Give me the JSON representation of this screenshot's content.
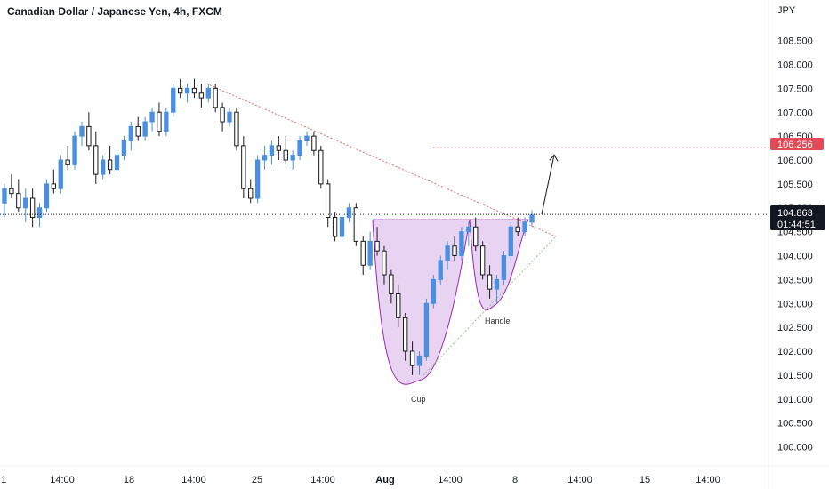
{
  "header": {
    "title": "Canadian Dollar / Japanese Yen, 4h, FXCM"
  },
  "axis": {
    "currency": "JPY",
    "y_ticks": [
      "108.500",
      "108.000",
      "107.500",
      "107.000",
      "106.500",
      "106.000",
      "105.500",
      "105.000",
      "104.500",
      "104.000",
      "103.500",
      "103.000",
      "102.500",
      "102.000",
      "101.500",
      "101.000",
      "100.500",
      "100.000"
    ],
    "x_ticks": [
      "1",
      "14:00",
      "18",
      "14:00",
      "25",
      "14:00",
      "Aug",
      "14:00",
      "8",
      "14:00",
      "15",
      "14:00"
    ]
  },
  "price_badge": {
    "price": "104.863",
    "countdown": "01:44:51"
  },
  "target_badge": {
    "price": "106.256"
  },
  "annotations": {
    "cup": "Cup",
    "handle": "Handle"
  },
  "colors": {
    "up": "#4a8fe0",
    "down": "#1a1a1a",
    "target": "#e24a55",
    "trendline": "#e06b78",
    "support": "#86c986",
    "pattern_fill": "#e2c9ef",
    "pattern_stroke": "#9c27b0"
  },
  "chart_data": {
    "type": "candlestick",
    "title": "Canadian Dollar / Japanese Yen, 4h, FXCM",
    "ylabel": "JPY",
    "ylim": [
      99.6,
      109.2
    ],
    "series": [
      {
        "name": "CADJPY",
        "ohlc": [
          [
            105.1,
            105.5,
            104.8,
            105.4
          ],
          [
            105.4,
            105.7,
            105.2,
            105.3
          ],
          [
            105.3,
            105.6,
            104.9,
            105.0
          ],
          [
            105.0,
            105.4,
            104.7,
            105.2
          ],
          [
            105.2,
            105.4,
            104.6,
            104.8
          ],
          [
            104.8,
            105.1,
            104.6,
            105.0
          ],
          [
            105.0,
            105.6,
            104.9,
            105.5
          ],
          [
            105.5,
            105.8,
            105.3,
            105.4
          ],
          [
            105.4,
            106.1,
            105.3,
            106.0
          ],
          [
            106.0,
            106.3,
            105.8,
            105.9
          ],
          [
            105.9,
            106.6,
            105.8,
            106.5
          ],
          [
            106.5,
            106.8,
            106.3,
            106.7
          ],
          [
            106.7,
            107.0,
            106.2,
            106.3
          ],
          [
            106.3,
            106.6,
            105.5,
            105.7
          ],
          [
            105.7,
            106.1,
            105.6,
            106.0
          ],
          [
            106.0,
            106.3,
            105.7,
            105.8
          ],
          [
            105.8,
            106.2,
            105.7,
            106.1
          ],
          [
            106.1,
            106.5,
            106.0,
            106.4
          ],
          [
            106.4,
            106.8,
            106.2,
            106.7
          ],
          [
            106.7,
            106.9,
            106.4,
            106.5
          ],
          [
            106.5,
            106.9,
            106.4,
            106.8
          ],
          [
            106.8,
            107.1,
            106.6,
            107.0
          ],
          [
            107.0,
            107.2,
            106.5,
            106.6
          ],
          [
            106.6,
            107.1,
            106.5,
            107.0
          ],
          [
            107.0,
            107.6,
            106.9,
            107.5
          ],
          [
            107.5,
            107.7,
            107.3,
            107.4
          ],
          [
            107.4,
            107.6,
            107.2,
            107.5
          ],
          [
            107.5,
            107.7,
            107.3,
            107.4
          ],
          [
            107.4,
            107.6,
            107.1,
            107.3
          ],
          [
            107.3,
            107.6,
            107.2,
            107.5
          ],
          [
            107.5,
            107.6,
            107.0,
            107.1
          ],
          [
            107.1,
            107.2,
            106.6,
            106.8
          ],
          [
            106.8,
            107.1,
            106.7,
            107.0
          ],
          [
            107.0,
            107.1,
            106.2,
            106.3
          ],
          [
            106.3,
            106.5,
            105.2,
            105.4
          ],
          [
            105.4,
            105.6,
            105.1,
            105.2
          ],
          [
            105.2,
            106.1,
            105.1,
            106.0
          ],
          [
            106.0,
            106.3,
            105.8,
            106.1
          ],
          [
            106.1,
            106.4,
            105.9,
            106.3
          ],
          [
            106.3,
            106.5,
            106.0,
            106.2
          ],
          [
            106.2,
            106.5,
            105.9,
            106.0
          ],
          [
            106.0,
            106.2,
            105.8,
            106.1
          ],
          [
            106.1,
            106.5,
            106.0,
            106.4
          ],
          [
            106.4,
            106.6,
            106.3,
            106.5
          ],
          [
            106.5,
            106.6,
            106.1,
            106.2
          ],
          [
            106.2,
            106.3,
            105.4,
            105.5
          ],
          [
            105.5,
            105.6,
            104.6,
            104.8
          ],
          [
            104.8,
            104.9,
            104.3,
            104.4
          ],
          [
            104.4,
            104.9,
            104.3,
            104.8
          ],
          [
            104.8,
            105.1,
            104.7,
            105.0
          ],
          [
            105.0,
            105.1,
            104.2,
            104.3
          ],
          [
            104.3,
            104.4,
            103.6,
            103.8
          ],
          [
            103.8,
            104.5,
            103.7,
            104.3
          ],
          [
            104.3,
            104.6,
            104.0,
            104.1
          ],
          [
            104.1,
            104.2,
            103.4,
            103.6
          ],
          [
            103.6,
            103.7,
            103.0,
            103.2
          ],
          [
            103.2,
            103.4,
            102.5,
            102.7
          ],
          [
            102.7,
            102.8,
            101.8,
            102.0
          ],
          [
            102.0,
            102.2,
            101.5,
            101.7
          ],
          [
            101.7,
            102.0,
            101.5,
            101.9
          ],
          [
            101.9,
            103.1,
            101.8,
            103.0
          ],
          [
            103.0,
            103.6,
            102.9,
            103.5
          ],
          [
            103.5,
            104.0,
            103.4,
            103.9
          ],
          [
            103.9,
            104.3,
            103.7,
            104.2
          ],
          [
            104.2,
            104.4,
            103.9,
            104.0
          ],
          [
            104.0,
            104.6,
            103.9,
            104.5
          ],
          [
            104.5,
            104.7,
            104.2,
            104.6
          ],
          [
            104.6,
            104.8,
            104.1,
            104.2
          ],
          [
            104.2,
            104.3,
            103.5,
            103.6
          ],
          [
            103.6,
            103.8,
            103.1,
            103.3
          ],
          [
            103.3,
            103.6,
            103.0,
            103.5
          ],
          [
            103.5,
            104.1,
            103.4,
            104.0
          ],
          [
            104.0,
            104.7,
            103.9,
            104.6
          ],
          [
            104.6,
            104.8,
            104.4,
            104.5
          ],
          [
            104.5,
            104.8,
            104.4,
            104.7
          ],
          [
            104.7,
            104.95,
            104.6,
            104.85
          ]
        ]
      }
    ],
    "price_line": 104.863,
    "target_level": 106.256,
    "trendline": [
      [
        0.0,
        107.6
      ],
      [
        1.0,
        104.4
      ]
    ],
    "support_line": [
      [
        0.0,
        101.5
      ],
      [
        1.0,
        104.4
      ]
    ],
    "cup_rim": 104.75,
    "cup_bottom": 101.4,
    "handle_bottom": 102.95
  }
}
